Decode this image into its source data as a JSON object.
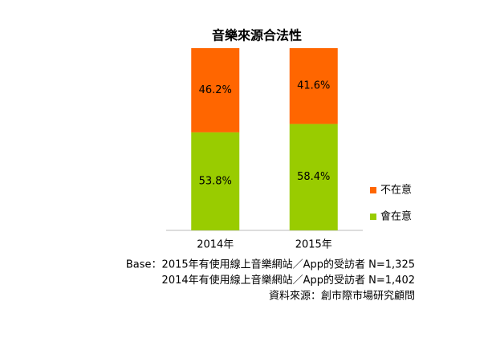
{
  "chart_data": {
    "type": "stacked-bar",
    "title": "音樂來源合法性",
    "categories": [
      "2014年",
      "2015年"
    ],
    "series": [
      {
        "name": "會在意",
        "color": "#99cc00",
        "values": [
          53.8,
          58.4
        ],
        "value_labels": [
          "53.8%",
          "58.4%"
        ]
      },
      {
        "name": "不在意",
        "color": "#ff6600",
        "values": [
          46.2,
          41.6
        ],
        "value_labels": [
          "46.2%",
          "41.6%"
        ]
      }
    ],
    "ylim": [
      0,
      100
    ],
    "notes": [
      "Base：2015年有使用線上音樂網站／App的受訪者 N=1,325",
      "2014年有使用線上音樂網站／App的受訪者 N=1,402",
      "資料來源：創市際市場研究顧問"
    ]
  }
}
